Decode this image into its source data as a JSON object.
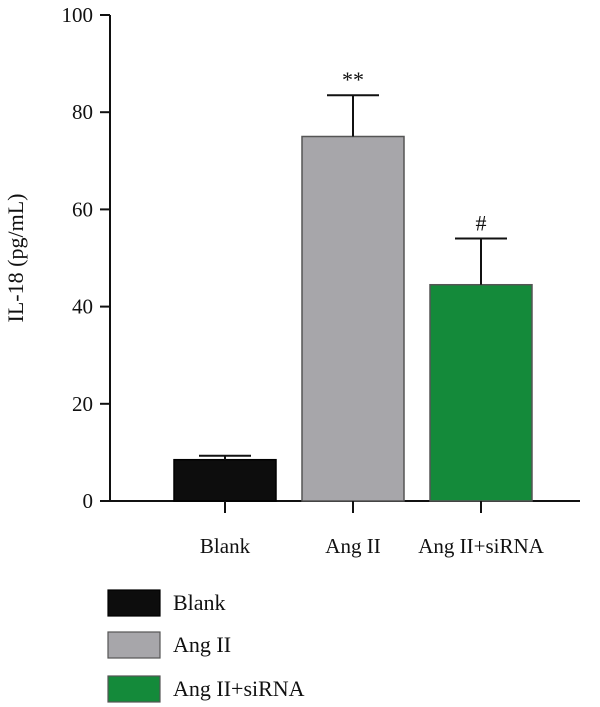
{
  "chart_data": {
    "type": "bar",
    "categories": [
      "Blank",
      "Ang II",
      "Ang II+siRNA"
    ],
    "values": [
      8.5,
      75,
      44.5
    ],
    "errors": [
      0.8,
      8.5,
      9.5
    ],
    "significance": [
      "",
      "**",
      "#"
    ],
    "colors": [
      "#0d0d0d",
      "#a7a6aa",
      "#148a3a"
    ],
    "ylabel": "IL-18 (pg/mL)",
    "xlabel": "",
    "title": "",
    "ylim": [
      0,
      100
    ],
    "yticks": [
      "0",
      "20",
      "40",
      "60",
      "80",
      "100"
    ],
    "legend": {
      "position": "bottom-left",
      "entries": [
        "Blank",
        "Ang II",
        "Ang II+siRNA"
      ]
    },
    "grid": false
  }
}
